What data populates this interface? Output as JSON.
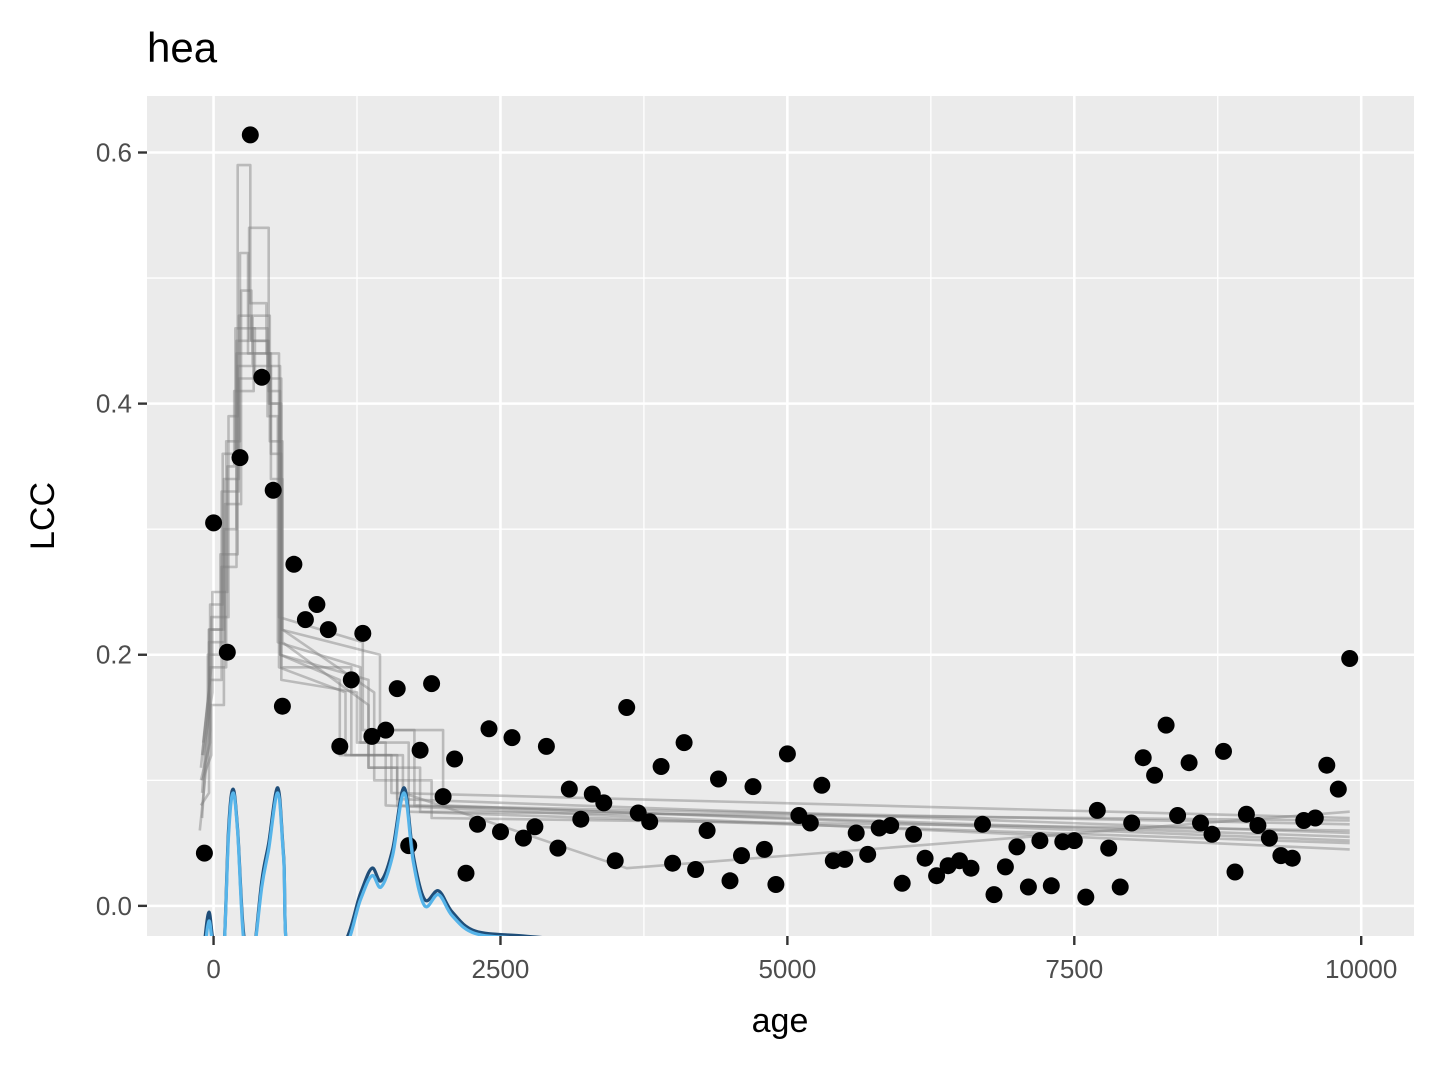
{
  "chart_data": {
    "type": "scatter",
    "title": "hea",
    "xlabel": "age",
    "ylabel": "LCC",
    "xlim": [
      -580,
      10460
    ],
    "ylim": [
      -0.024,
      0.645
    ],
    "x_ticks": [
      0,
      2500,
      5000,
      7500,
      10000
    ],
    "x_tick_labels": [
      "0",
      "2500",
      "5000",
      "7500",
      "10000"
    ],
    "y_ticks": [
      0.0,
      0.2,
      0.4,
      0.6
    ],
    "y_tick_labels": [
      "0.0",
      "0.2",
      "0.4",
      "0.6"
    ],
    "grid": true,
    "panel_background": "#ebebeb",
    "colors": {
      "points": "#000000",
      "model_lines": "#7f7f7f",
      "density_dark": "#1f4e79",
      "density_light": "#56b4e9"
    },
    "points": [
      [
        -80,
        0.042
      ],
      [
        0,
        0.305
      ],
      [
        120,
        0.202
      ],
      [
        230,
        0.357
      ],
      [
        320,
        0.614
      ],
      [
        420,
        0.421
      ],
      [
        520,
        0.331
      ],
      [
        600,
        0.159
      ],
      [
        700,
        0.272
      ],
      [
        800,
        0.228
      ],
      [
        900,
        0.24
      ],
      [
        1000,
        0.22
      ],
      [
        1100,
        0.127
      ],
      [
        1200,
        0.18
      ],
      [
        1300,
        0.217
      ],
      [
        1380,
        0.135
      ],
      [
        1500,
        0.14
      ],
      [
        1600,
        0.173
      ],
      [
        1700,
        0.048
      ],
      [
        1800,
        0.124
      ],
      [
        1900,
        0.177
      ],
      [
        2000,
        0.087
      ],
      [
        2100,
        0.117
      ],
      [
        2200,
        0.026
      ],
      [
        2300,
        0.065
      ],
      [
        2400,
        0.141
      ],
      [
        2500,
        0.059
      ],
      [
        2600,
        0.134
      ],
      [
        2700,
        0.054
      ],
      [
        2800,
        0.063
      ],
      [
        2900,
        0.127
      ],
      [
        3000,
        0.046
      ],
      [
        3100,
        0.093
      ],
      [
        3200,
        0.069
      ],
      [
        3300,
        0.089
      ],
      [
        3400,
        0.082
      ],
      [
        3500,
        0.036
      ],
      [
        3600,
        0.158
      ],
      [
        3700,
        0.074
      ],
      [
        3800,
        0.067
      ],
      [
        3900,
        0.111
      ],
      [
        4000,
        0.034
      ],
      [
        4100,
        0.13
      ],
      [
        4200,
        0.029
      ],
      [
        4300,
        0.06
      ],
      [
        4400,
        0.101
      ],
      [
        4500,
        0.02
      ],
      [
        4600,
        0.04
      ],
      [
        4700,
        0.095
      ],
      [
        4800,
        0.045
      ],
      [
        4900,
        0.017
      ],
      [
        5000,
        0.121
      ],
      [
        5100,
        0.072
      ],
      [
        5200,
        0.066
      ],
      [
        5300,
        0.096
      ],
      [
        5400,
        0.036
      ],
      [
        5500,
        0.037
      ],
      [
        5600,
        0.058
      ],
      [
        5700,
        0.041
      ],
      [
        5800,
        0.062
      ],
      [
        5900,
        0.064
      ],
      [
        6000,
        0.018
      ],
      [
        6100,
        0.057
      ],
      [
        6200,
        0.038
      ],
      [
        6300,
        0.024
      ],
      [
        6400,
        0.032
      ],
      [
        6500,
        0.036
      ],
      [
        6600,
        0.03
      ],
      [
        6700,
        0.065
      ],
      [
        6800,
        0.009
      ],
      [
        6900,
        0.031
      ],
      [
        7000,
        0.047
      ],
      [
        7100,
        0.015
      ],
      [
        7200,
        0.052
      ],
      [
        7300,
        0.016
      ],
      [
        7400,
        0.051
      ],
      [
        7500,
        0.052
      ],
      [
        7600,
        0.007
      ],
      [
        7700,
        0.076
      ],
      [
        7800,
        0.046
      ],
      [
        7900,
        0.015
      ],
      [
        8000,
        0.066
      ],
      [
        8100,
        0.118
      ],
      [
        8200,
        0.104
      ],
      [
        8300,
        0.144
      ],
      [
        8400,
        0.072
      ],
      [
        8500,
        0.114
      ],
      [
        8600,
        0.066
      ],
      [
        8700,
        0.057
      ],
      [
        8800,
        0.123
      ],
      [
        8900,
        0.027
      ],
      [
        9000,
        0.073
      ],
      [
        9100,
        0.064
      ],
      [
        9200,
        0.054
      ],
      [
        9300,
        0.04
      ],
      [
        9400,
        0.038
      ],
      [
        9500,
        0.068
      ],
      [
        9600,
        0.07
      ],
      [
        9700,
        0.112
      ],
      [
        9800,
        0.093
      ],
      [
        9900,
        0.197
      ]
    ],
    "model_lines": [
      [
        [
          -110,
          0.08
        ],
        [
          -40,
          0.09
        ],
        [
          -40,
          0.22
        ],
        [
          70,
          0.22
        ],
        [
          70,
          0.33
        ],
        [
          220,
          0.33
        ],
        [
          220,
          0.47
        ],
        [
          330,
          0.47
        ],
        [
          330,
          0.45
        ],
        [
          480,
          0.45
        ],
        [
          480,
          0.43
        ],
        [
          580,
          0.43
        ],
        [
          580,
          0.2
        ],
        [
          1350,
          0.18
        ],
        [
          1350,
          0.11
        ],
        [
          1600,
          0.11
        ],
        [
          1600,
          0.08
        ],
        [
          9900,
          0.065
        ]
      ],
      [
        [
          -100,
          0.1
        ],
        [
          -20,
          0.12
        ],
        [
          -20,
          0.16
        ],
        [
          90,
          0.16
        ],
        [
          90,
          0.3
        ],
        [
          200,
          0.3
        ],
        [
          200,
          0.44
        ],
        [
          340,
          0.44
        ],
        [
          340,
          0.46
        ],
        [
          470,
          0.46
        ],
        [
          470,
          0.39
        ],
        [
          560,
          0.39
        ],
        [
          560,
          0.21
        ],
        [
          1280,
          0.19
        ],
        [
          1280,
          0.13
        ],
        [
          1700,
          0.13
        ],
        [
          1700,
          0.075
        ],
        [
          9900,
          0.05
        ]
      ],
      [
        [
          -120,
          0.06
        ],
        [
          -30,
          0.14
        ],
        [
          -30,
          0.19
        ],
        [
          110,
          0.19
        ],
        [
          110,
          0.37
        ],
        [
          230,
          0.37
        ],
        [
          230,
          0.52
        ],
        [
          300,
          0.52
        ],
        [
          300,
          0.44
        ],
        [
          490,
          0.44
        ],
        [
          490,
          0.4
        ],
        [
          590,
          0.4
        ],
        [
          590,
          0.19
        ],
        [
          1200,
          0.19
        ],
        [
          1200,
          0.12
        ],
        [
          1550,
          0.12
        ],
        [
          1550,
          0.09
        ],
        [
          9900,
          0.07
        ]
      ],
      [
        [
          -90,
          0.12
        ],
        [
          -10,
          0.17
        ],
        [
          -10,
          0.25
        ],
        [
          120,
          0.25
        ],
        [
          120,
          0.35
        ],
        [
          180,
          0.35
        ],
        [
          180,
          0.41
        ],
        [
          350,
          0.41
        ],
        [
          350,
          0.43
        ],
        [
          500,
          0.43
        ],
        [
          500,
          0.34
        ],
        [
          600,
          0.34
        ],
        [
          600,
          0.22
        ],
        [
          1400,
          0.17
        ],
        [
          1400,
          0.1
        ],
        [
          1900,
          0.1
        ],
        [
          1900,
          0.07
        ],
        [
          9900,
          0.06
        ]
      ],
      [
        [
          -100,
          0.09
        ],
        [
          -50,
          0.15
        ],
        [
          -50,
          0.2
        ],
        [
          60,
          0.2
        ],
        [
          60,
          0.28
        ],
        [
          210,
          0.28
        ],
        [
          210,
          0.59
        ],
        [
          320,
          0.59
        ],
        [
          320,
          0.48
        ],
        [
          460,
          0.48
        ],
        [
          460,
          0.44
        ],
        [
          570,
          0.44
        ],
        [
          570,
          0.23
        ],
        [
          1300,
          0.21
        ],
        [
          1300,
          0.14
        ],
        [
          1750,
          0.14
        ],
        [
          1750,
          0.08
        ],
        [
          9900,
          0.055
        ]
      ],
      [
        [
          -110,
          0.11
        ],
        [
          -30,
          0.18
        ],
        [
          -30,
          0.24
        ],
        [
          80,
          0.24
        ],
        [
          80,
          0.36
        ],
        [
          190,
          0.36
        ],
        [
          190,
          0.46
        ],
        [
          360,
          0.46
        ],
        [
          360,
          0.42
        ],
        [
          480,
          0.42
        ],
        [
          480,
          0.41
        ],
        [
          580,
          0.41
        ],
        [
          580,
          0.2
        ],
        [
          1100,
          0.18
        ],
        [
          1100,
          0.12
        ],
        [
          1650,
          0.12
        ],
        [
          1650,
          0.09
        ],
        [
          3600,
          0.03
        ],
        [
          9900,
          0.075
        ]
      ],
      [
        [
          -100,
          0.07
        ],
        [
          -40,
          0.16
        ],
        [
          -40,
          0.21
        ],
        [
          100,
          0.21
        ],
        [
          100,
          0.32
        ],
        [
          240,
          0.32
        ],
        [
          240,
          0.49
        ],
        [
          330,
          0.49
        ],
        [
          330,
          0.45
        ],
        [
          470,
          0.45
        ],
        [
          470,
          0.42
        ],
        [
          590,
          0.42
        ],
        [
          590,
          0.18
        ],
        [
          1250,
          0.17
        ],
        [
          1250,
          0.13
        ],
        [
          1500,
          0.13
        ],
        [
          1500,
          0.08
        ],
        [
          9900,
          0.045
        ]
      ],
      [
        [
          -90,
          0.13
        ],
        [
          -20,
          0.19
        ],
        [
          -20,
          0.23
        ],
        [
          130,
          0.23
        ],
        [
          130,
          0.39
        ],
        [
          210,
          0.39
        ],
        [
          210,
          0.43
        ],
        [
          340,
          0.43
        ],
        [
          340,
          0.47
        ],
        [
          490,
          0.47
        ],
        [
          490,
          0.37
        ],
        [
          600,
          0.37
        ],
        [
          600,
          0.21
        ],
        [
          1350,
          0.16
        ],
        [
          1350,
          0.11
        ],
        [
          1800,
          0.11
        ],
        [
          1800,
          0.075
        ],
        [
          9900,
          0.068
        ]
      ],
      [
        [
          -110,
          0.1
        ],
        [
          -30,
          0.13
        ],
        [
          -30,
          0.18
        ],
        [
          70,
          0.18
        ],
        [
          70,
          0.27
        ],
        [
          200,
          0.27
        ],
        [
          200,
          0.45
        ],
        [
          310,
          0.45
        ],
        [
          310,
          0.54
        ],
        [
          480,
          0.54
        ],
        [
          480,
          0.4
        ],
        [
          570,
          0.4
        ],
        [
          570,
          0.19
        ],
        [
          1150,
          0.17
        ],
        [
          1150,
          0.12
        ],
        [
          1600,
          0.12
        ],
        [
          1600,
          0.085
        ],
        [
          9900,
          0.058
        ]
      ],
      [
        [
          -100,
          0.12
        ],
        [
          -40,
          0.17
        ],
        [
          -40,
          0.22
        ],
        [
          90,
          0.22
        ],
        [
          90,
          0.34
        ],
        [
          220,
          0.34
        ],
        [
          220,
          0.42
        ],
        [
          350,
          0.42
        ],
        [
          350,
          0.44
        ],
        [
          500,
          0.44
        ],
        [
          500,
          0.36
        ],
        [
          590,
          0.36
        ],
        [
          590,
          0.22
        ],
        [
          1450,
          0.2
        ],
        [
          1450,
          0.14
        ],
        [
          2000,
          0.14
        ],
        [
          2000,
          0.08
        ],
        [
          9900,
          0.052
        ]
      ]
    ],
    "density_curves": [
      [
        [
          -80,
          -0.03
        ],
        [
          -40,
          -0.005
        ],
        [
          0,
          -0.03
        ],
        [
          80,
          -0.05
        ],
        [
          130,
          0.06
        ],
        [
          170,
          0.093
        ],
        [
          210,
          0.06
        ],
        [
          260,
          -0.02
        ],
        [
          330,
          -0.05
        ],
        [
          420,
          0.02
        ],
        [
          480,
          0.05
        ],
        [
          560,
          0.094
        ],
        [
          610,
          0.04
        ],
        [
          680,
          -0.05
        ],
        [
          1100,
          -0.035
        ],
        [
          1280,
          0.01
        ],
        [
          1380,
          0.03
        ],
        [
          1460,
          0.02
        ],
        [
          1560,
          0.045
        ],
        [
          1660,
          0.094
        ],
        [
          1740,
          0.04
        ],
        [
          1840,
          0.005
        ],
        [
          1960,
          0.012
        ],
        [
          2080,
          -0.005
        ],
        [
          2280,
          -0.02
        ],
        [
          2700,
          -0.024
        ],
        [
          3250,
          -0.028
        ]
      ],
      [
        [
          -80,
          -0.04
        ],
        [
          -40,
          -0.012
        ],
        [
          0,
          -0.035
        ],
        [
          80,
          -0.05
        ],
        [
          130,
          0.055
        ],
        [
          170,
          0.09
        ],
        [
          210,
          0.058
        ],
        [
          260,
          -0.025
        ],
        [
          330,
          -0.05
        ],
        [
          420,
          0.015
        ],
        [
          480,
          0.045
        ],
        [
          560,
          0.09
        ],
        [
          610,
          0.038
        ],
        [
          680,
          -0.05
        ],
        [
          1100,
          -0.04
        ],
        [
          1280,
          0.005
        ],
        [
          1380,
          0.024
        ],
        [
          1460,
          0.015
        ],
        [
          1560,
          0.04
        ],
        [
          1660,
          0.09
        ],
        [
          1740,
          0.035
        ],
        [
          1840,
          0.0
        ],
        [
          1960,
          0.009
        ],
        [
          2080,
          -0.008
        ],
        [
          2280,
          -0.022
        ],
        [
          2700,
          -0.026
        ],
        [
          3250,
          -0.03
        ]
      ]
    ]
  }
}
